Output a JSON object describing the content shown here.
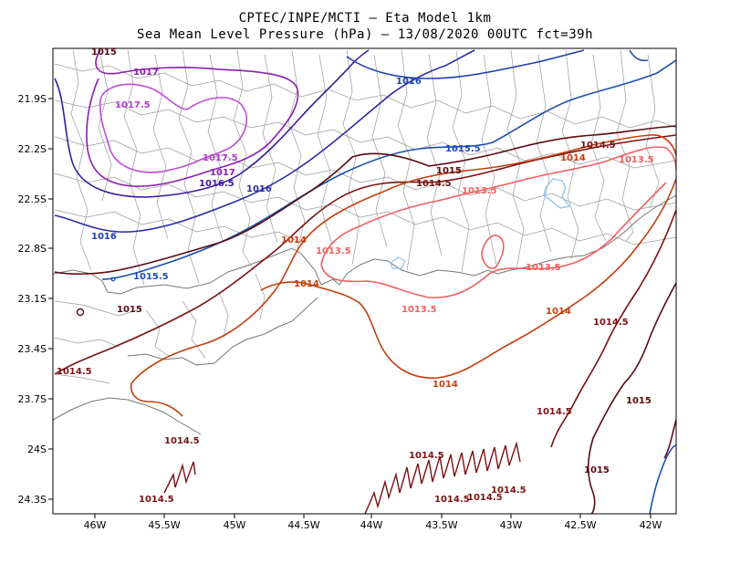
{
  "title": {
    "line1": "CPTEC/INPE/MCTI –  Eta Model 1km",
    "line2": "Sea Mean Level Pressure (hPa) – 13/08/2020 00UTC fct=39h"
  },
  "axes": {
    "x_ticks": [
      "46W",
      "45.5W",
      "45W",
      "44.5W",
      "44W",
      "43.5W",
      "43W",
      "42.5W",
      "42W"
    ],
    "y_ticks": [
      "21.9S",
      "22.2S",
      "22.5S",
      "22.8S",
      "23.1S",
      "23.4S",
      "23.7S",
      "24S",
      "24.3S"
    ]
  },
  "contour_labels": [
    {
      "text": "1017",
      "color": "#8a1fb0"
    },
    {
      "text": "1017.5",
      "color": "#b23ad0"
    },
    {
      "text": "1017.5",
      "color": "#b23ad0"
    },
    {
      "text": "1017",
      "color": "#8a1fb0"
    },
    {
      "text": "1016.5",
      "color": "#3a1a9a"
    },
    {
      "text": "1016",
      "color": "#2a2aa8"
    },
    {
      "text": "1016",
      "color": "#1b3fae"
    },
    {
      "text": "1016",
      "color": "#1b3fae"
    },
    {
      "text": "1015.5",
      "color": "#1b4fb0"
    },
    {
      "text": "1015.5",
      "color": "#1b4fb0"
    },
    {
      "text": "1015",
      "color": "#5a0a12"
    },
    {
      "text": "1015",
      "color": "#5a0a12"
    },
    {
      "text": "1014.5",
      "color": "#7a1212"
    },
    {
      "text": "1014.5",
      "color": "#7a1212"
    },
    {
      "text": "1014",
      "color": "#c0400e"
    },
    {
      "text": "1014",
      "color": "#c0400e"
    },
    {
      "text": "1014",
      "color": "#c0400e"
    },
    {
      "text": "1014",
      "color": "#c0400e"
    },
    {
      "text": "1014",
      "color": "#c0400e"
    },
    {
      "text": "1013.5",
      "color": "#f06060"
    },
    {
      "text": "1013.5",
      "color": "#f06060"
    },
    {
      "text": "1013.5",
      "color": "#f06060"
    },
    {
      "text": "1013.5",
      "color": "#f06060"
    },
    {
      "text": "1013.5",
      "color": "#f06060"
    },
    {
      "text": "1014.5",
      "color": "#7a1212"
    },
    {
      "text": "1014.5",
      "color": "#7a1212"
    },
    {
      "text": "1014.5",
      "color": "#7a1212"
    },
    {
      "text": "1014.5",
      "color": "#7a1212"
    },
    {
      "text": "1014.5",
      "color": "#7a1212"
    },
    {
      "text": "1014.5",
      "color": "#7a1212"
    },
    {
      "text": "1014.5",
      "color": "#7a1212"
    },
    {
      "text": "1014.5",
      "color": "#7a1212"
    },
    {
      "text": "1014.5",
      "color": "#7a1212"
    },
    {
      "text": "1015",
      "color": "#5a0a12"
    },
    {
      "text": "1015",
      "color": "#5a0a12"
    },
    {
      "text": "1015",
      "color": "#5a0a12"
    }
  ]
}
